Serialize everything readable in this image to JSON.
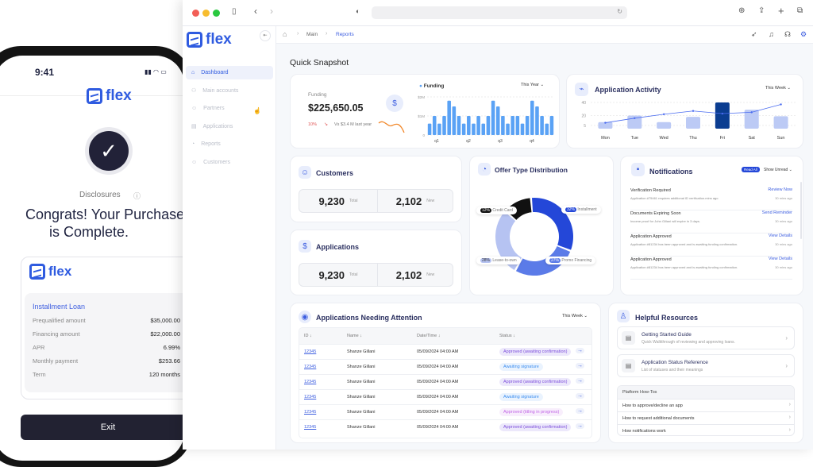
{
  "phone": {
    "time": "9:41",
    "brand": "flex",
    "disclosures": "Disclosures",
    "headline_1": "Congrats! Your Purchase",
    "headline_2": "is Complete.",
    "loan": {
      "title": "Installment Loan",
      "rows": [
        {
          "label": "Prequalified amount",
          "value": "$35,000.00"
        },
        {
          "label": "Financing amount",
          "value": "$22,000.00"
        },
        {
          "label": "APR",
          "value": "6.99%"
        },
        {
          "label": "Monthly payment",
          "value": "$253.66"
        },
        {
          "label": "Term",
          "value": "120 months"
        }
      ]
    },
    "exit": "Exit"
  },
  "sidebar": {
    "brand": "flex",
    "items": [
      {
        "label": "Dashboard",
        "active": true
      },
      {
        "label": "Main accounts"
      },
      {
        "label": "Partners"
      },
      {
        "label": "Applications"
      },
      {
        "label": "Reports"
      },
      {
        "label": "Customers"
      }
    ]
  },
  "breadcrumb": [
    "Main",
    "Reports"
  ],
  "page_title": "Quick Snapshot",
  "funding": {
    "label": "Funding",
    "amount": "$225,650.05",
    "change": "10%",
    "compare": "Vs $3.4 M last year",
    "legend": "Funding",
    "period": "This Year",
    "yticks": [
      "$2M",
      "$1M",
      "0"
    ],
    "xticks": [
      "q1",
      "q2",
      "q3",
      "q4"
    ],
    "values_m": [
      0.6,
      1,
      0.6,
      1,
      1.8,
      1.5,
      1,
      0.6,
      1,
      0.6,
      1,
      0.6,
      1,
      1.8,
      1.5,
      1,
      0.6,
      1,
      1,
      0.6,
      1,
      1.8,
      1.5,
      1,
      0.6,
      1
    ],
    "colors": {
      "bar": "#5aa2f5",
      "trend": "#f28a2e"
    }
  },
  "activity": {
    "title": "Application Activity",
    "period": "This Week",
    "yticks": [
      "40",
      "20",
      "5"
    ],
    "days": [
      "Mon",
      "Tue",
      "Wed",
      "Thu",
      "Fri",
      "Sat",
      "Sun"
    ],
    "bars": [
      10,
      20,
      10,
      18,
      40,
      29,
      19
    ],
    "line": [
      9,
      16,
      22,
      27,
      23,
      25,
      37
    ],
    "highlight": "Fri",
    "colors": {
      "bar": "#bccaf5",
      "highlight": "#0b3d91",
      "line": "#4a6cf0"
    }
  },
  "customers": {
    "title": "Customers",
    "total": "9,230",
    "total_label": "Total",
    "new": "2,102",
    "new_label": "New"
  },
  "applications": {
    "title": "Applications",
    "total": "9,230",
    "total_label": "Total",
    "new": "2,102",
    "new_label": "New"
  },
  "offers": {
    "title": "Offer Type Distribution",
    "slices": [
      {
        "label": "Installment",
        "pct": "32%",
        "value": 32,
        "color": "#2447d8"
      },
      {
        "label": "Promo Financing",
        "pct": "27%",
        "value": 27,
        "color": "#5b7be8"
      },
      {
        "label": "Lease-to-own",
        "pct": "28%",
        "value": 28,
        "color": "#b6c3f2"
      },
      {
        "label": "Credit Card",
        "pct": "12%",
        "value": 12,
        "color": "#111111"
      }
    ]
  },
  "notifications": {
    "title": "Notifications",
    "read_all": "Read All",
    "filter": "Show Unread",
    "items": [
      {
        "title": "Verification Required",
        "body": "Application #75461 requires additional ID verification.mins ago",
        "action": "Review Now",
        "time": "30 mins ago"
      },
      {
        "title": "Documents Expiring Soon",
        "body": "Income proof for John Gillani will expire in 3 days.",
        "action": "Send Reminder",
        "time": "30 mins ago"
      },
      {
        "title": "Application Approved",
        "body": "Application #81234 has been approved and is awaiting funding confirmation.",
        "action": "View Details",
        "time": "30 mins ago"
      },
      {
        "title": "Application Approved",
        "body": "Application #81234 has been approved and is awaiting funding confirmation.",
        "action": "View Details",
        "time": "30 mins ago"
      }
    ]
  },
  "attention": {
    "title": "Applications Needing Attention",
    "period": "This Week",
    "columns": [
      "ID ↓",
      "Name ↓",
      "Date/Time ↓",
      "Status ↓"
    ],
    "rows": [
      {
        "id": "12345",
        "name": "Shanze Gillani",
        "date": "05/09/2024 04:00 AM",
        "status": "Approved (awaiting confirmation)",
        "kind": "a"
      },
      {
        "id": "12345",
        "name": "Shanze Gillani",
        "date": "05/09/2024 04:00 AM",
        "status": "Awaiting signature",
        "kind": "s"
      },
      {
        "id": "12345",
        "name": "Shanze Gillani",
        "date": "05/09/2024 04:00 AM",
        "status": "Approved (awaiting confirmation)",
        "kind": "a"
      },
      {
        "id": "12345",
        "name": "Shanze Gillani",
        "date": "05/09/2024 04:00 AM",
        "status": "Awaiting signature",
        "kind": "s"
      },
      {
        "id": "12345",
        "name": "Shanze Gillani",
        "date": "05/09/2024 04:00 AM",
        "status": "Approved (titling in progress)",
        "kind": "t"
      },
      {
        "id": "12345",
        "name": "Shanze Gillani",
        "date": "05/09/2024 04:00 AM",
        "status": "Approved (awaiting confirmation)",
        "kind": "a"
      }
    ]
  },
  "resources": {
    "title": "Helpful Resources",
    "guides": [
      {
        "title": "Getting Started Guide",
        "desc": "Quick Walkthrough of reviewing and approving loans."
      },
      {
        "title": "Application Status Reference",
        "desc": "List of statuses and their meanings"
      }
    ],
    "howtos_title": "Platform How-Tos",
    "howtos": [
      "How to approve/decline an app",
      "How to request additional documents",
      "How notifications work"
    ]
  }
}
